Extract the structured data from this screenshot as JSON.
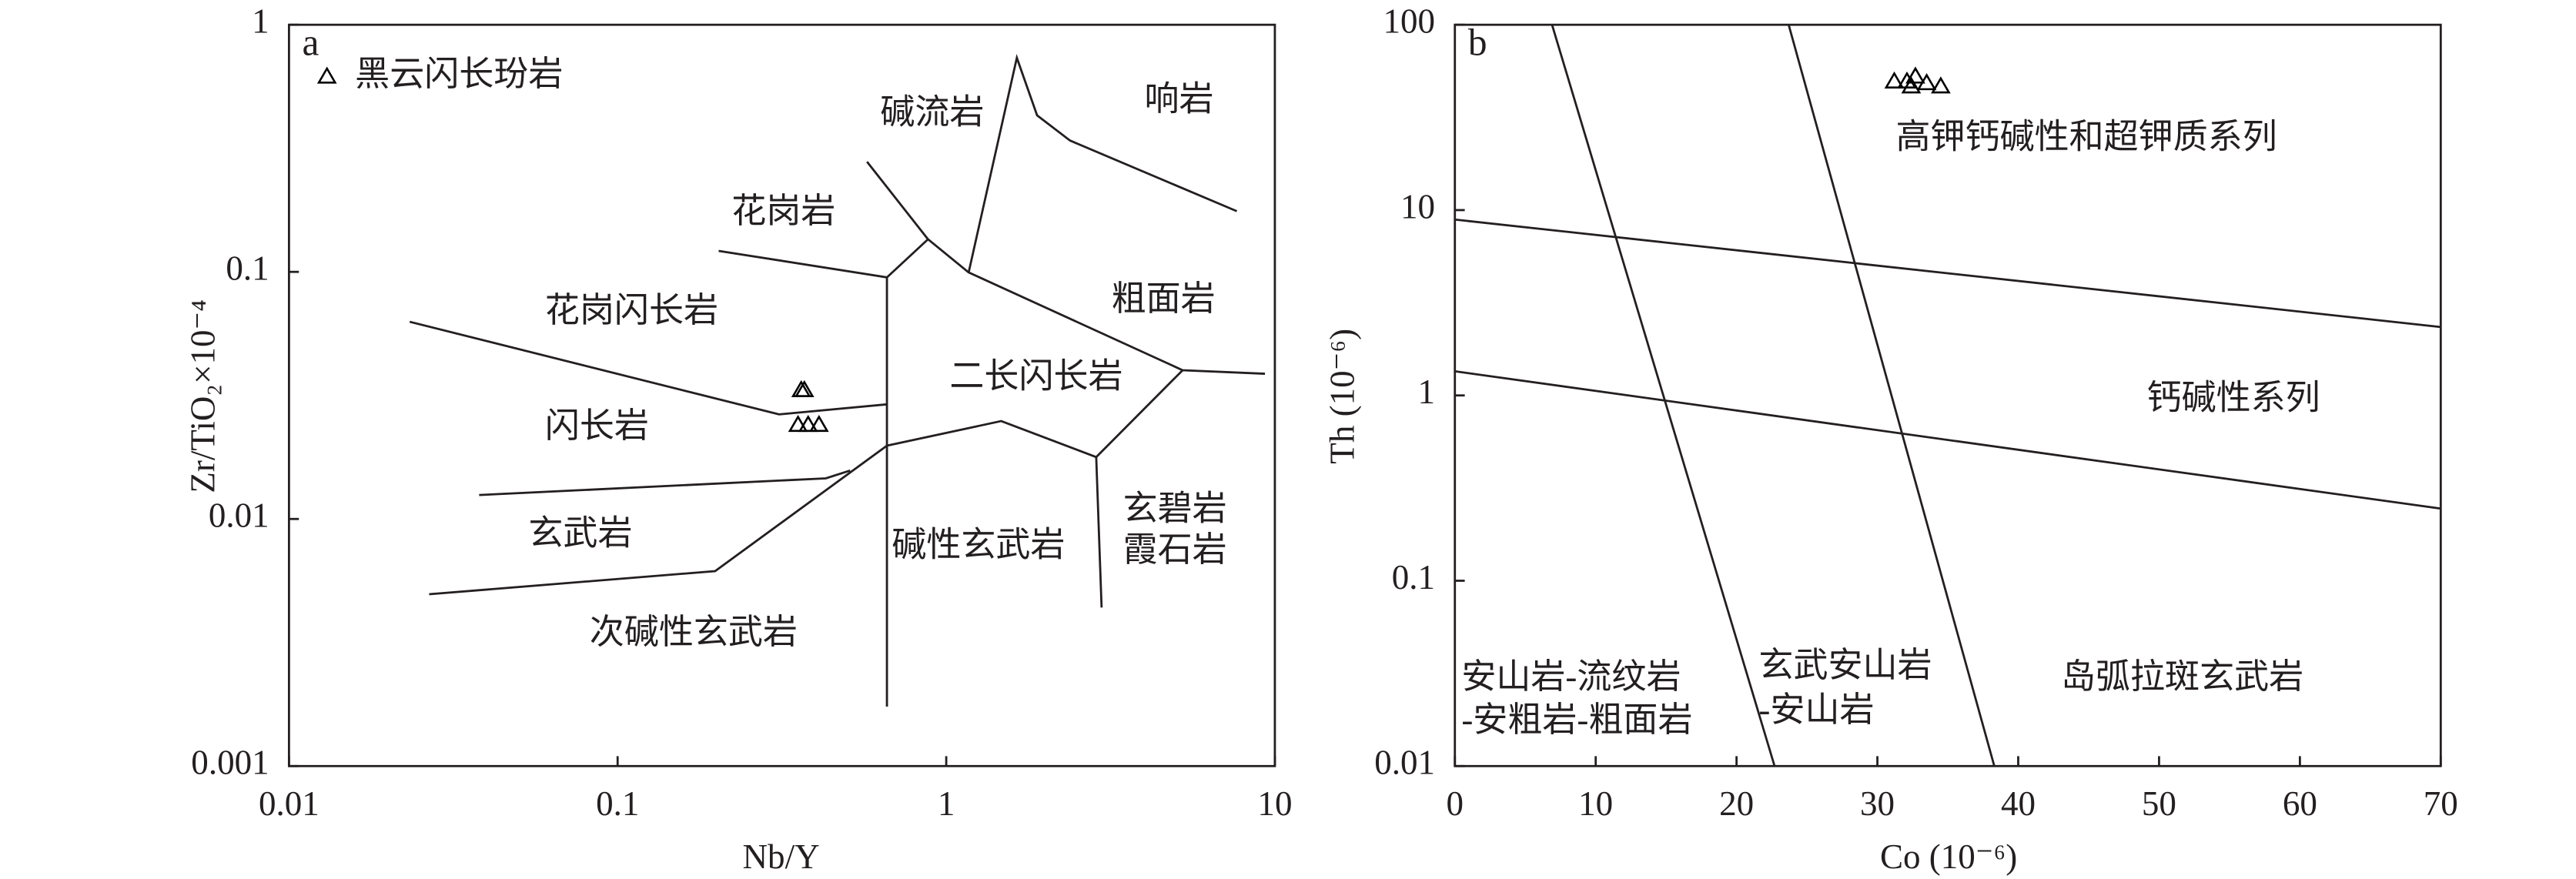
{
  "chart_data": [
    {
      "type": "scatter",
      "title": "a",
      "xlabel": "Nb/Y",
      "ylabel": "Zr/TiO₂×10⁻⁴",
      "xscale": "log",
      "yscale": "log",
      "xlim": [
        0.01,
        10
      ],
      "ylim": [
        0.001,
        1
      ],
      "xticks": [
        0.01,
        0.1,
        1,
        10
      ],
      "yticks": [
        0.001,
        0.01,
        0.1,
        1
      ],
      "legend": "upper left",
      "series": [
        {
          "name": "黑云闪长玢岩",
          "color": "#000000",
          "marker": "triangle",
          "x": [
            0.362,
            0.37,
            0.354,
            0.38,
            0.41
          ],
          "y": [
            0.0329,
            0.0329,
            0.0238,
            0.0238,
            0.0238
          ]
        }
      ],
      "boundaries": [
        {
          "x": [
            0.0233,
            0.31,
            0.66
          ],
          "y": [
            0.0628,
            0.0265,
            0.0291
          ]
        },
        {
          "x": [
            0.203,
            0.66,
            0.66
          ],
          "y": [
            0.1216,
            0.095,
            0.00174
          ]
        },
        {
          "x": [
            0.574,
            0.88,
            0.66
          ],
          "y": [
            0.279,
            0.1355,
            0.095
          ]
        },
        {
          "x": [
            0.88,
            1.17,
            5.24,
            9.33
          ],
          "y": [
            0.1355,
            0.0995,
            0.04,
            0.0387
          ]
        },
        {
          "x": [
            1.17,
            1.64,
            1.89,
            2.38,
            7.66
          ],
          "y": [
            0.0995,
            0.735,
            0.43,
            0.34,
            0.176
          ]
        },
        {
          "x": [
            5.24,
            2.86,
            1.47,
            0.66
          ],
          "y": [
            0.04,
            0.0178,
            0.0249,
            0.0198
          ]
        },
        {
          "x": [
            0.0379,
            0.43,
            0.51
          ],
          "y": [
            0.0125,
            0.0146,
            0.0157
          ]
        },
        {
          "x": [
            0.0267,
            0.198,
            0.66
          ],
          "y": [
            0.00496,
            0.00615,
            0.0198
          ]
        },
        {
          "x": [
            2.86,
            2.97
          ],
          "y": [
            0.0178,
            0.00438
          ]
        }
      ],
      "annotations": [
        "碱流岩",
        "响岩",
        "花岗岩",
        "粗面岩",
        "花岗闪长岩",
        "二长闪长岩",
        "闪长岩",
        "玄碧岩",
        "霞石岩",
        "玄武岩",
        "碱性玄武岩",
        "次碱性玄武岩"
      ]
    },
    {
      "type": "scatter",
      "title": "b",
      "xlabel": "Co (10⁻⁶)",
      "ylabel": "Th (10⁻⁶)",
      "xscale": "linear",
      "yscale": "log",
      "xlim": [
        0,
        70
      ],
      "ylim": [
        0.01,
        100
      ],
      "xticks": [
        0,
        10,
        20,
        30,
        40,
        50,
        60,
        70
      ],
      "yticks": [
        0.01,
        0.1,
        1,
        10,
        100
      ],
      "series": [
        {
          "color": "#000000",
          "marker": "triangle",
          "x": [
            31.2,
            32.1,
            32.7,
            33.5,
            34.5,
            32.4
          ],
          "y": [
            48.8,
            48.8,
            51.9,
            47.8,
            45.9,
            45.9
          ]
        }
      ],
      "boundaries": [
        {
          "x": [
            6.9,
            22.7
          ],
          "y": [
            100,
            0.01
          ]
        },
        {
          "x": [
            23.7,
            38.3
          ],
          "y": [
            100,
            0.01
          ]
        },
        {
          "x": [
            0,
            70
          ],
          "y": [
            8.89,
            2.34
          ]
        },
        {
          "x": [
            0,
            70
          ],
          "y": [
            1.35,
            0.245
          ]
        }
      ],
      "annotations": [
        "高钾钙碱性和超钾质系列",
        "钙碱性系列",
        "安山岩-流纹岩",
        "-安粗岩-粗面岩",
        "玄武安山岩",
        "-安山岩",
        "岛弧拉斑玄武岩"
      ]
    }
  ]
}
